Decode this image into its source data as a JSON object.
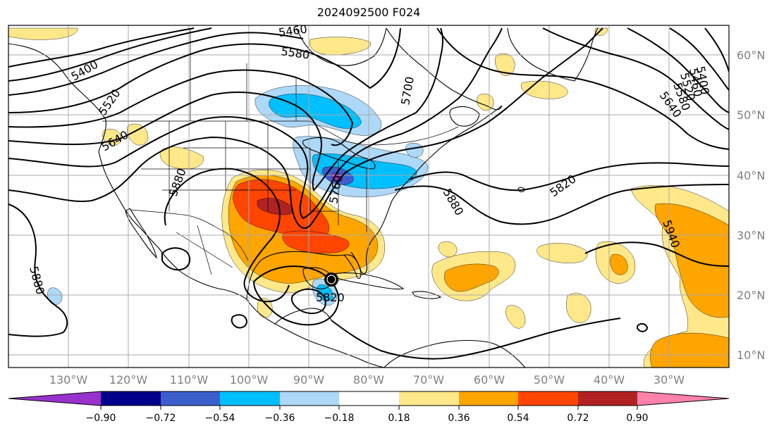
{
  "title": "2024092500 F024",
  "lat_labels": [
    "60°N",
    "50°N",
    "40°N",
    "30°N",
    "20°N",
    "10°N"
  ],
  "lon_labels": [
    "130°W",
    "120°W",
    "110°W",
    "100°W",
    "90°W",
    "80°W",
    "70°W",
    "60°W",
    "50°W",
    "40°W",
    "30°W"
  ],
  "contour_labels": [
    "5460",
    "5580",
    "5400",
    "5520",
    "5640",
    "5880",
    "5760",
    "5700",
    "5880",
    "5820",
    "5640",
    "5580",
    "5520",
    "5460",
    "5400",
    "5940",
    "5880",
    "5820"
  ],
  "colorbar": {
    "colors": [
      "#9932cc",
      "#00008b",
      "#3a5fcd",
      "#00bfff",
      "#add8f8",
      "#ffffff",
      "#ffe88a",
      "#ffa500",
      "#ff4500",
      "#b22222",
      "#ff82ab"
    ],
    "tick_labels": [
      "−0.90",
      "−0.72",
      "−0.54",
      "−0.36",
      "−0.18",
      "0.18",
      "0.36",
      "0.54",
      "0.72",
      "0.90"
    ]
  },
  "colors": {
    "orange": "#ffa500",
    "red_orange": "#ff4500",
    "dark_red": "#b22222",
    "light_yellow": "#ffe88a",
    "light_blue": "#add8f8",
    "mid_blue": "#00bfff",
    "royal_blue": "#3a5fcd",
    "purple": "#9932cc"
  }
}
